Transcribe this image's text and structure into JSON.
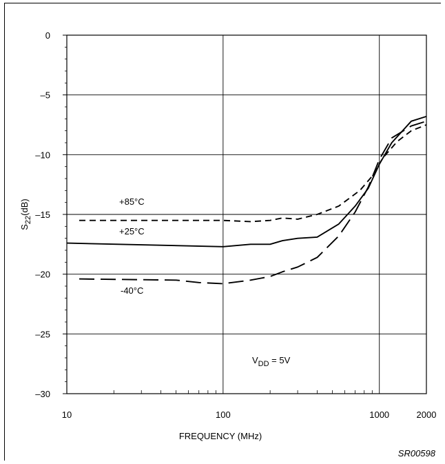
{
  "chart_data": {
    "type": "line",
    "xscale": "log",
    "xlim": [
      10,
      2000
    ],
    "ylim": [
      -30,
      0
    ],
    "grid": true,
    "xlabel": "FREQUENCY (MHz)",
    "ylabel": {
      "base": "S",
      "sub": "22",
      "unit": "(dB)"
    },
    "x_ticks": [
      {
        "value": 10,
        "label": "10"
      },
      {
        "value": 100,
        "label": "100"
      },
      {
        "value": 1000,
        "label": "1000"
      },
      {
        "value": 2000,
        "label": "2000"
      }
    ],
    "y_ticks": [
      {
        "value": 0,
        "label": "0"
      },
      {
        "value": -5,
        "label": "–5"
      },
      {
        "value": -10,
        "label": "–10"
      },
      {
        "value": -15,
        "label": "–15"
      },
      {
        "value": -20,
        "label": "–20"
      },
      {
        "value": -25,
        "label": "–25"
      },
      {
        "value": -30,
        "label": "–30"
      }
    ],
    "series": [
      {
        "name": "+85°C",
        "dash": "short",
        "x": [
          12,
          100,
          150,
          200,
          240,
          300,
          400,
          550,
          750,
          900,
          1050,
          1300,
          1600,
          2000
        ],
        "y": [
          -15.5,
          -15.5,
          -15.6,
          -15.5,
          -15.3,
          -15.4,
          -15.0,
          -14.3,
          -13.0,
          -11.8,
          -10.3,
          -8.9,
          -8.0,
          -7.5
        ]
      },
      {
        "name": "+25°C",
        "dash": "solid",
        "x": [
          10,
          100,
          150,
          200,
          240,
          300,
          400,
          550,
          700,
          850,
          1000,
          1200,
          1600,
          2000
        ],
        "y": [
          -17.4,
          -17.7,
          -17.5,
          -17.5,
          -17.2,
          -17.0,
          -16.9,
          -15.8,
          -14.3,
          -12.8,
          -10.8,
          -9.0,
          -7.2,
          -6.8
        ]
      },
      {
        "name": "-40°C",
        "dash": "long",
        "x": [
          12,
          50,
          70,
          100,
          150,
          200,
          240,
          300,
          400,
          550,
          700,
          850,
          1000,
          1200,
          1600,
          2000
        ],
        "y": [
          -20.4,
          -20.5,
          -20.7,
          -20.8,
          -20.5,
          -20.2,
          -19.8,
          -19.4,
          -18.6,
          -16.8,
          -14.8,
          -12.7,
          -10.4,
          -8.6,
          -7.6,
          -7.2
        ]
      }
    ],
    "annotations": [
      {
        "text": "+85°C"
      },
      {
        "text": "+25°C"
      },
      {
        "text": "-40°C"
      }
    ],
    "condition": {
      "base": "V",
      "sub": "DD",
      "rest": " = 5V"
    },
    "code": "SR00598"
  }
}
